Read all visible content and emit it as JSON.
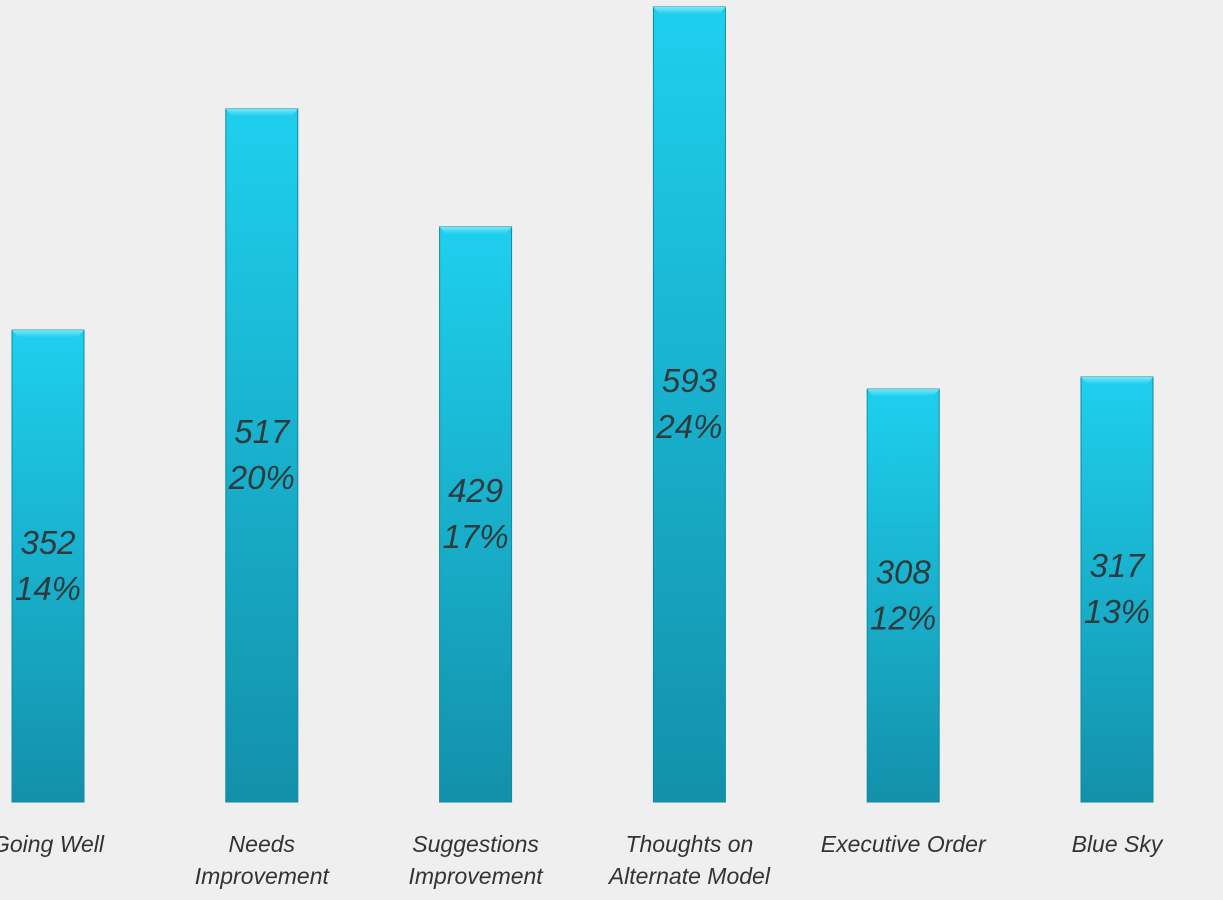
{
  "chart_data": {
    "type": "bar",
    "categories": [
      "Going Well",
      "Needs\nImprovement",
      "Suggestions\nImprovement",
      "Thoughts on\nAlternate Model",
      "Executive Order",
      "Blue Sky"
    ],
    "values": [
      352,
      517,
      429,
      593,
      308,
      317
    ],
    "percents": [
      14,
      20,
      17,
      24,
      12,
      13
    ],
    "percent_labels": [
      "14%",
      "20%",
      "17%",
      "24%",
      "12%",
      "13%"
    ],
    "color": "#17b5d4"
  }
}
